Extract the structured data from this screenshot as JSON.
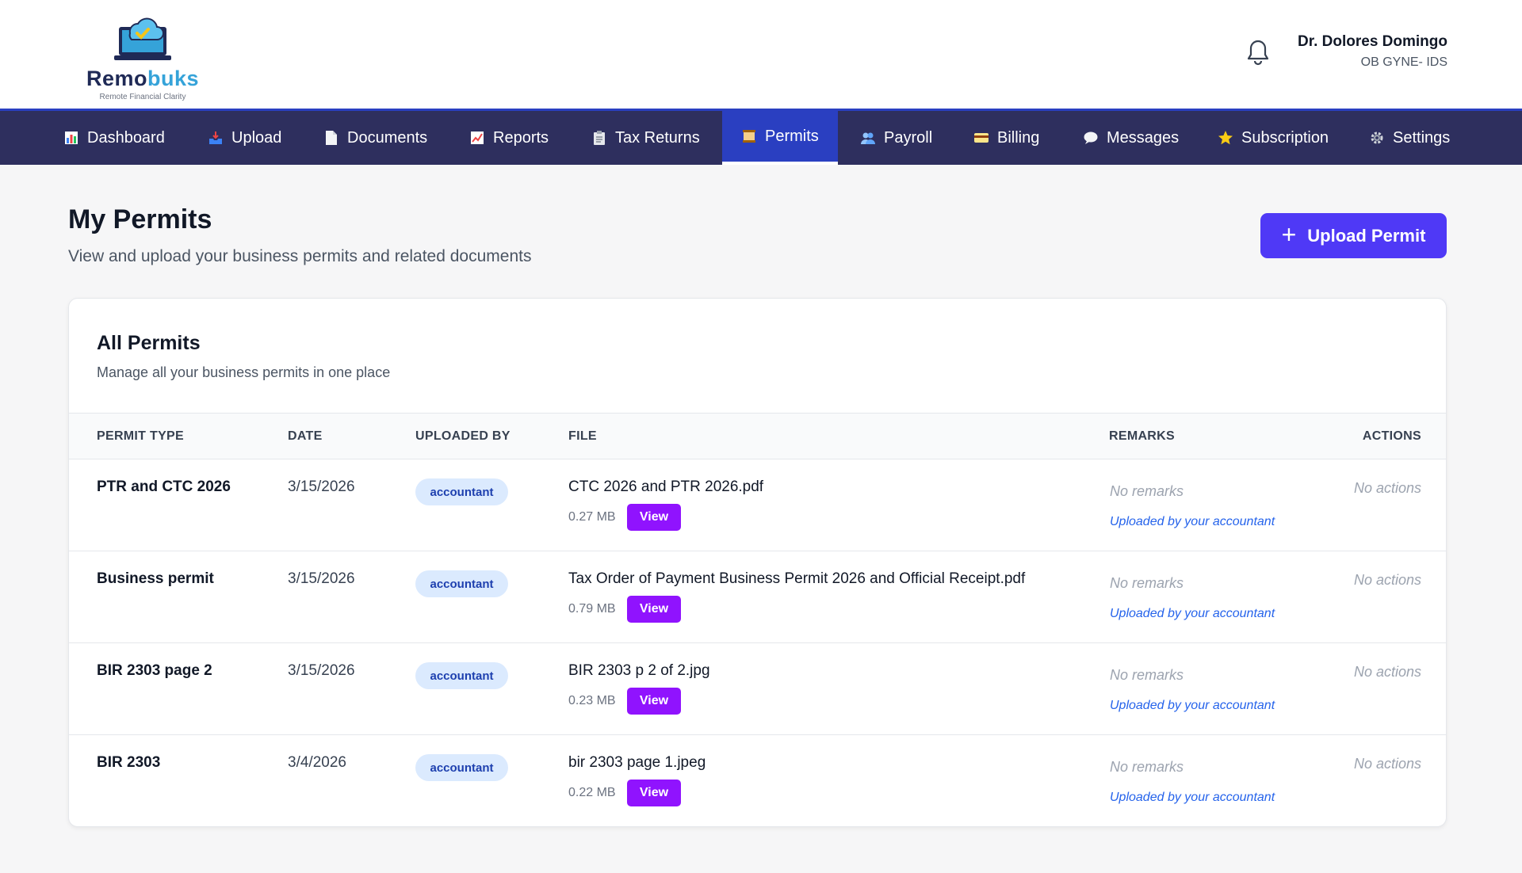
{
  "brand": {
    "name_main": "Remo",
    "name_accent": "buks",
    "tagline": "Remote Financial Clarity"
  },
  "user": {
    "name": "Dr. Dolores Domingo",
    "role": "OB GYNE- IDS"
  },
  "nav": {
    "items": [
      {
        "label": "Dashboard",
        "icon": "chart-icon"
      },
      {
        "label": "Upload",
        "icon": "inbox-tray-icon"
      },
      {
        "label": "Documents",
        "icon": "page-icon"
      },
      {
        "label": "Reports",
        "icon": "trend-chart-icon"
      },
      {
        "label": "Tax Returns",
        "icon": "clipboard-icon"
      },
      {
        "label": "Permits",
        "icon": "scroll-icon",
        "active": true
      },
      {
        "label": "Payroll",
        "icon": "people-icon"
      },
      {
        "label": "Billing",
        "icon": "credit-card-icon"
      },
      {
        "label": "Messages",
        "icon": "speech-bubble-icon"
      },
      {
        "label": "Subscription",
        "icon": "star-icon"
      },
      {
        "label": "Settings",
        "icon": "gear-icon"
      }
    ]
  },
  "page": {
    "title": "My Permits",
    "subtitle": "View and upload your business permits and related documents",
    "upload_button": "Upload Permit"
  },
  "card": {
    "title": "All Permits",
    "subtitle": "Manage all your business permits in one place"
  },
  "table": {
    "headers": {
      "permit_type": "PERMIT TYPE",
      "date": "DATE",
      "uploaded_by": "UPLOADED BY",
      "file": "FILE",
      "remarks": "REMARKS",
      "actions": "ACTIONS"
    },
    "rows": [
      {
        "type": "PTR and CTC 2026",
        "date": "3/15/2026",
        "uploaded_by": "accountant",
        "file": "CTC 2026 and PTR 2026.pdf",
        "size": "0.27 MB",
        "view": "View",
        "remarks": "No remarks",
        "uploaded_note": "Uploaded by your accountant",
        "actions": "No actions"
      },
      {
        "type": "Business permit",
        "date": "3/15/2026",
        "uploaded_by": "accountant",
        "file": "Tax Order of Payment Business Permit 2026 and Official Receipt.pdf",
        "size": "0.79 MB",
        "view": "View",
        "remarks": "No remarks",
        "uploaded_note": "Uploaded by your accountant",
        "actions": "No actions"
      },
      {
        "type": "BIR 2303 page 2",
        "date": "3/15/2026",
        "uploaded_by": "accountant",
        "file": "BIR 2303 p 2 of 2.jpg",
        "size": "0.23 MB",
        "view": "View",
        "remarks": "No remarks",
        "uploaded_note": "Uploaded by your accountant",
        "actions": "No actions"
      },
      {
        "type": "BIR 2303",
        "date": "3/4/2026",
        "uploaded_by": "accountant",
        "file": "bir 2303 page 1.jpeg",
        "size": "0.22 MB",
        "view": "View",
        "remarks": "No remarks",
        "uploaded_note": "Uploaded by your accountant",
        "actions": "No actions"
      }
    ]
  },
  "colors": {
    "nav_bg": "#2e2f5e",
    "nav_active": "#2a3fc1",
    "primary_button": "#4f39f6",
    "view_button": "#9013fe",
    "badge_bg": "#dbeafe",
    "link": "#2563eb"
  }
}
